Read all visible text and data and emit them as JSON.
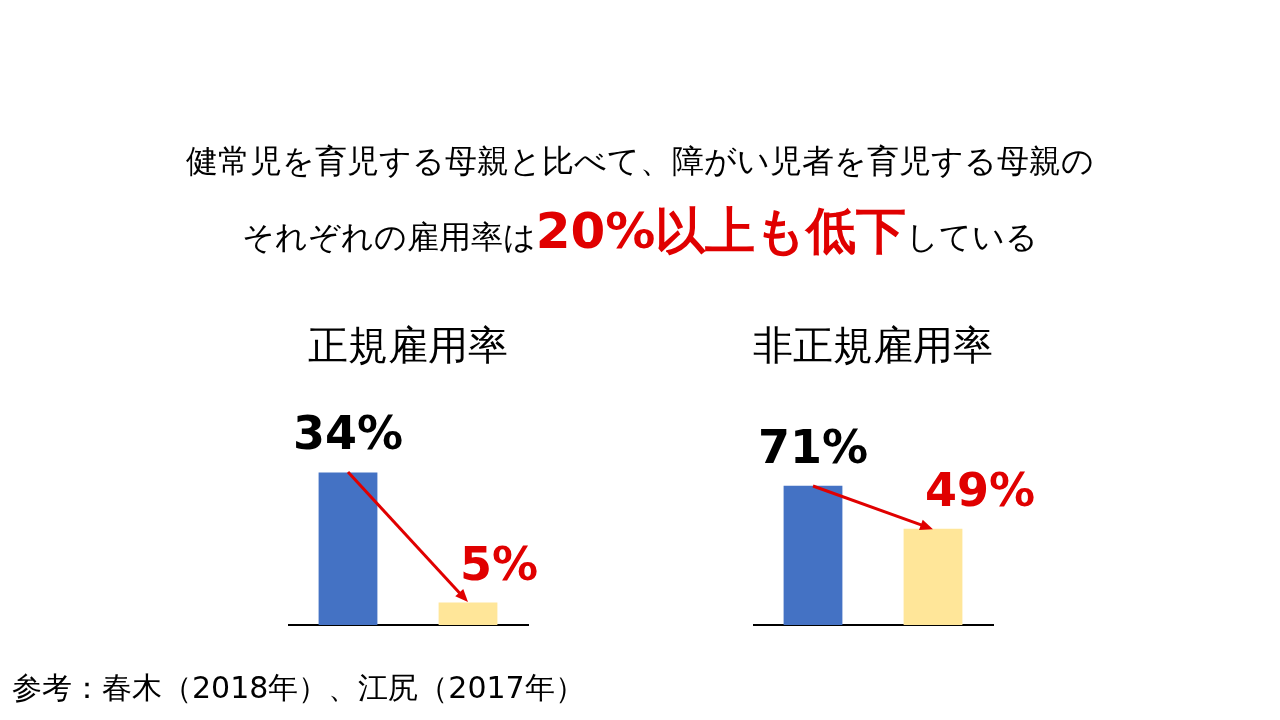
{
  "chart_data": [
    {
      "type": "other",
      "annotations": [
        "健常児を育児する母親と比べて、障がい児者を育児する母親の",
        "それぞれの雇用率は",
        "20%以上も低下",
        "している",
        "参考：春木（2018年）、江尻（2017年）"
      ]
    },
    {
      "type": "bar",
      "title": "正規雇用率",
      "categories": [
        null,
        null
      ],
      "values": [
        34,
        5
      ],
      "colors": [
        "#4472c4",
        "#ffe699"
      ],
      "data_labels": true,
      "value_labels": [
        "34%",
        "5%"
      ],
      "tick_labels": false
    },
    {
      "type": "bar",
      "title": "非正規雇用率",
      "categories": [
        null,
        null
      ],
      "values": [
        71,
        49
      ],
      "colors": [
        "#4472c4",
        "#ffe699"
      ],
      "data_labels": true,
      "value_labels": [
        "71%",
        "49%"
      ],
      "tick_labels": false
    }
  ]
}
